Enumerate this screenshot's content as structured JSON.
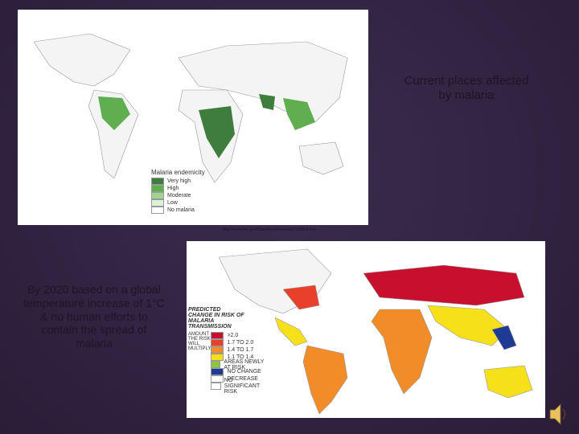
{
  "top_caption": "Current places affected by malaria",
  "bottom_caption": "By 2020 based on a global temperature increase of 1°C & no human efforts to contain the spread of malaria",
  "source_url": "http://www.fda.gov/Cber/blood/malaria071206ck.htm",
  "current_map": {
    "legend_title": "Malaria endemicity",
    "legend": [
      {
        "label": "Very high",
        "color": "#3f7d3f"
      },
      {
        "label": "High",
        "color": "#5fae4f"
      },
      {
        "label": "Moderate",
        "color": "#9fd58f"
      },
      {
        "label": "Low",
        "color": "#dff0d8"
      },
      {
        "label": "No malaria",
        "color": "#ffffff"
      }
    ]
  },
  "future_map": {
    "legend_title": "PREDICTED CHANGE IN RISK OF MALARIA TRANSMISSION",
    "legend_subtitle": "AMOUNT THE RISK WILL MULTIPLY",
    "legend": [
      {
        "label": ">2.0",
        "color": "#c8102e"
      },
      {
        "label": "1.7 TO 2.0",
        "color": "#e8402a"
      },
      {
        "label": "1.4 TO 1.7",
        "color": "#f28c28"
      },
      {
        "label": "1.1 TO 1.4",
        "color": "#f6e019"
      },
      {
        "label": "AREAS NEWLY AT RISK",
        "color": "#8cc63f"
      },
      {
        "label": "NO CHANGE",
        "color": "#1f3a93"
      },
      {
        "label": "DECREASE",
        "color": "#ffffff"
      },
      {
        "label": "NO SIGNIFICANT RISK",
        "color": "#ffffff"
      }
    ]
  }
}
